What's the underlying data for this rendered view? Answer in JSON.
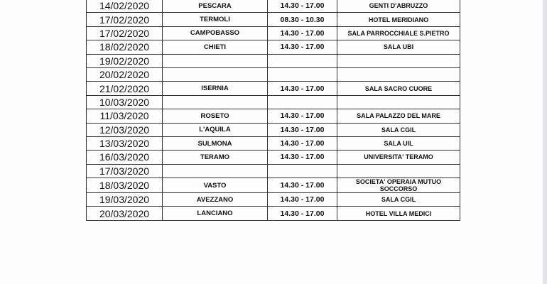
{
  "schedule": {
    "rows": [
      {
        "date": "14/02/2020",
        "city": "PESCARA",
        "time": "14.30 - 17.00",
        "venue": "GENTI D'ABRUZZO"
      },
      {
        "date": "17/02/2020",
        "city": "TERMOLI",
        "time": "08.30 - 10.30",
        "venue": "HOTEL MERIDIANO"
      },
      {
        "date": "17/02/2020",
        "city": "CAMPOBASSO",
        "time": "14.30 - 17.00",
        "venue": "SALA PARROCCHIALE S.PIETRO"
      },
      {
        "date": "18/02/2020",
        "city": "CHIETI",
        "time": "14.30 - 17.00",
        "venue": "SALA UBI"
      },
      {
        "date": "19/02/2020",
        "city": "",
        "time": "",
        "venue": ""
      },
      {
        "date": "20/02/2020",
        "city": "",
        "time": "",
        "venue": ""
      },
      {
        "date": "21/02/2020",
        "city": "ISERNIA",
        "time": "14.30 - 17.00",
        "venue": "SALA SACRO CUORE"
      },
      {
        "date": "10/03/2020",
        "city": "",
        "time": "",
        "venue": ""
      },
      {
        "date": "11/03/2020",
        "city": "ROSETO",
        "time": "14.30 - 17.00",
        "venue": "SALA PALAZZO DEL MARE"
      },
      {
        "date": "12/03/2020",
        "city": "L'AQUILA",
        "time": "14.30 - 17.00",
        "venue": "SALA CGIL"
      },
      {
        "date": "13/03/2020",
        "city": "SULMONA",
        "time": "14.30 - 17.00",
        "venue": "SALA UIL"
      },
      {
        "date": "16/03/2020",
        "city": "TERAMO",
        "time": "14.30 - 17.00",
        "venue": "UNIVERSITA' TERAMO"
      },
      {
        "date": "17/03/2020",
        "city": "",
        "time": "",
        "venue": ""
      },
      {
        "date": "18/03/2020",
        "city": "VASTO",
        "time": "14.30 - 17.00",
        "venue": "SOCIETA' OPERAIA MUTUO SOCCORSO"
      },
      {
        "date": "19/03/2020",
        "city": "AVEZZANO",
        "time": "14.30 - 17.00",
        "venue": "SALA CGIL"
      },
      {
        "date": "20/03/2020",
        "city": "LANCIANO",
        "time": "14.30 - 17.00",
        "venue": "HOTEL VILLA MEDICI"
      }
    ]
  }
}
